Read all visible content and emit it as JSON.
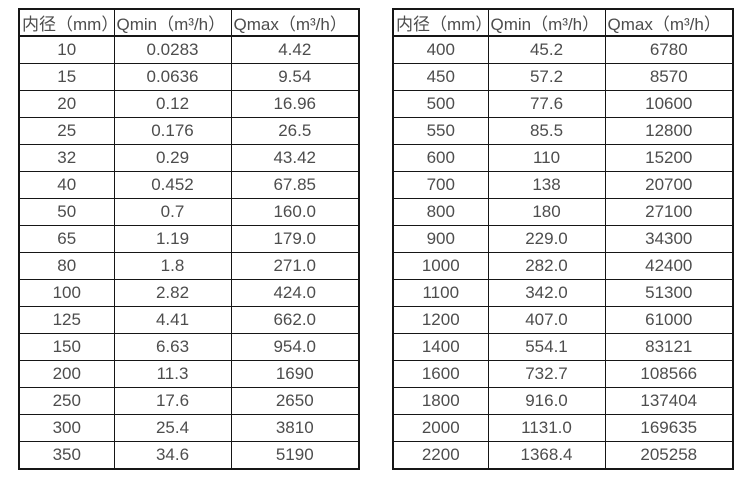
{
  "page": {
    "background": "#ffffff",
    "text_color": "#4d4d4d",
    "border_color": "#161616"
  },
  "tables": [
    {
      "name": "small-diameter-flow-ranges",
      "headers": [
        "内径（mm）",
        "Qmin（m³/h）",
        "Qmax（m³/h）"
      ],
      "rows": [
        [
          "10",
          "0.0283",
          "4.42"
        ],
        [
          "15",
          "0.0636",
          "9.54"
        ],
        [
          "20",
          "0.12",
          "16.96"
        ],
        [
          "25",
          "0.176",
          "26.5"
        ],
        [
          "32",
          "0.29",
          "43.42"
        ],
        [
          "40",
          "0.452",
          "67.85"
        ],
        [
          "50",
          "0.7",
          "160.0"
        ],
        [
          "65",
          "1.19",
          "179.0"
        ],
        [
          "80",
          "1.8",
          "271.0"
        ],
        [
          "100",
          "2.82",
          "424.0"
        ],
        [
          "125",
          "4.41",
          "662.0"
        ],
        [
          "150",
          "6.63",
          "954.0"
        ],
        [
          "200",
          "11.3",
          "1690"
        ],
        [
          "250",
          "17.6",
          "2650"
        ],
        [
          "300",
          "25.4",
          "3810"
        ],
        [
          "350",
          "34.6",
          "5190"
        ]
      ]
    },
    {
      "name": "large-diameter-flow-ranges",
      "headers": [
        "内径（mm）",
        "Qmin（m³/h）",
        "Qmax（m³/h）"
      ],
      "rows": [
        [
          "400",
          "45.2",
          "6780"
        ],
        [
          "450",
          "57.2",
          "8570"
        ],
        [
          "500",
          "77.6",
          "10600"
        ],
        [
          "550",
          "85.5",
          "12800"
        ],
        [
          "600",
          "110",
          "15200"
        ],
        [
          "700",
          "138",
          "20700"
        ],
        [
          "800",
          "180",
          "27100"
        ],
        [
          "900",
          "229.0",
          "34300"
        ],
        [
          "1000",
          "282.0",
          "42400"
        ],
        [
          "1100",
          "342.0",
          "51300"
        ],
        [
          "1200",
          "407.0",
          "61000"
        ],
        [
          "1400",
          "554.1",
          "83121"
        ],
        [
          "1600",
          "732.7",
          "108566"
        ],
        [
          "1800",
          "916.0",
          "137404"
        ],
        [
          "2000",
          "1131.0",
          "169635"
        ],
        [
          "2200",
          "1368.4",
          "205258"
        ]
      ]
    }
  ]
}
